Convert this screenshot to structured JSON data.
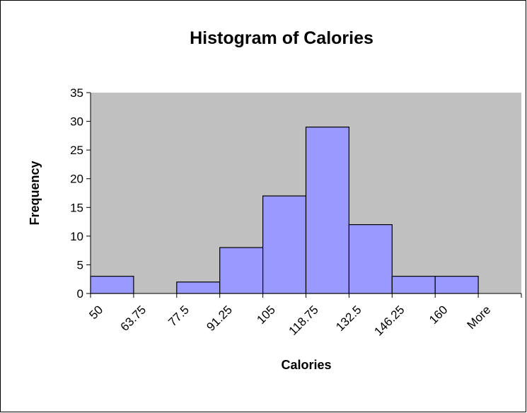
{
  "chart_data": {
    "type": "bar",
    "title": "Histogram of Calories",
    "x_label": "Calories",
    "y_label": "Frequency",
    "categories": [
      "50",
      "63.75",
      "77.5",
      "91.25",
      "105",
      "118.75",
      "132.5",
      "146.25",
      "160",
      "More"
    ],
    "values": [
      3,
      0,
      2,
      8,
      17,
      29,
      12,
      3,
      3,
      0
    ],
    "color": "#9999ff",
    "plot_background": "#c0c0c0",
    "ylim": [
      0,
      35
    ],
    "yticks": [
      0,
      5,
      10,
      15,
      20,
      25,
      30,
      35
    ],
    "grid": false
  }
}
